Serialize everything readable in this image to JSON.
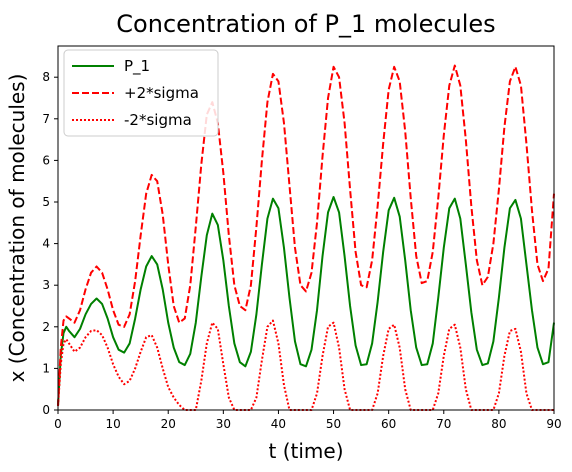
{
  "chart_data": {
    "type": "line",
    "title": "Concentration of P_1 molecules",
    "xlabel": "t (time)",
    "ylabel": "x (Concentration of molecules)",
    "xlim": [
      0,
      90
    ],
    "ylim": [
      0,
      8.75
    ],
    "xticks": [
      0,
      10,
      20,
      30,
      40,
      50,
      60,
      70,
      80,
      90
    ],
    "yticks": [
      0,
      1,
      2,
      3,
      4,
      5,
      6,
      7,
      8
    ],
    "grid": false,
    "legend_position": "top-left",
    "series": [
      {
        "name": "P_1",
        "color": "#008000",
        "style": "solid",
        "x": [
          0,
          0.5,
          1,
          1.5,
          2,
          3,
          4,
          5,
          6,
          7,
          8,
          9,
          10,
          11,
          12,
          13,
          14,
          15,
          16,
          17,
          18,
          19,
          20,
          21,
          22,
          23,
          24,
          25,
          26,
          27,
          28,
          29,
          30,
          31,
          32,
          33,
          34,
          35,
          36,
          37,
          38,
          39,
          40,
          41,
          42,
          43,
          44,
          45,
          46,
          47,
          48,
          49,
          50,
          51,
          52,
          53,
          54,
          55,
          56,
          57,
          58,
          59,
          60,
          61,
          62,
          63,
          64,
          65,
          66,
          67,
          68,
          69,
          70,
          71,
          72,
          73,
          74,
          75,
          76,
          77,
          78,
          79,
          80,
          81,
          82,
          83,
          84,
          85,
          86,
          87,
          88,
          89,
          90
        ],
        "y": [
          0.1,
          1.3,
          1.85,
          2.0,
          1.9,
          1.75,
          1.95,
          2.3,
          2.55,
          2.68,
          2.55,
          2.2,
          1.75,
          1.45,
          1.38,
          1.6,
          2.2,
          2.9,
          3.45,
          3.7,
          3.5,
          2.9,
          2.1,
          1.5,
          1.15,
          1.08,
          1.35,
          2.1,
          3.2,
          4.2,
          4.72,
          4.45,
          3.6,
          2.5,
          1.6,
          1.15,
          1.05,
          1.4,
          2.3,
          3.5,
          4.6,
          5.08,
          4.85,
          3.9,
          2.7,
          1.65,
          1.1,
          1.05,
          1.45,
          2.4,
          3.7,
          4.75,
          5.12,
          4.75,
          3.7,
          2.5,
          1.55,
          1.08,
          1.1,
          1.6,
          2.6,
          3.8,
          4.8,
          5.1,
          4.65,
          3.6,
          2.4,
          1.5,
          1.08,
          1.1,
          1.6,
          2.7,
          3.9,
          4.85,
          5.08,
          4.6,
          3.5,
          2.35,
          1.45,
          1.08,
          1.12,
          1.65,
          2.7,
          3.9,
          4.85,
          5.05,
          4.6,
          3.5,
          2.4,
          1.5,
          1.1,
          1.15,
          2.1
        ]
      },
      {
        "name": "+2*sigma",
        "color": "#ff0000",
        "style": "dashed",
        "x": [
          0,
          0.5,
          1,
          1.5,
          2,
          3,
          4,
          5,
          6,
          7,
          8,
          9,
          10,
          11,
          12,
          13,
          14,
          15,
          16,
          17,
          18,
          19,
          20,
          21,
          22,
          23,
          24,
          25,
          26,
          27,
          28,
          29,
          30,
          31,
          32,
          33,
          34,
          35,
          36,
          37,
          38,
          39,
          40,
          41,
          42,
          43,
          44,
          45,
          46,
          47,
          48,
          49,
          50,
          51,
          52,
          53,
          54,
          55,
          56,
          57,
          58,
          59,
          60,
          61,
          62,
          63,
          64,
          65,
          66,
          67,
          68,
          69,
          70,
          71,
          72,
          73,
          74,
          75,
          76,
          77,
          78,
          79,
          80,
          81,
          82,
          83,
          84,
          85,
          86,
          87,
          88,
          89,
          90
        ],
        "y": [
          0.1,
          1.5,
          2.15,
          2.25,
          2.2,
          2.1,
          2.4,
          2.9,
          3.3,
          3.45,
          3.3,
          2.9,
          2.4,
          2.05,
          2.0,
          2.3,
          3.1,
          4.2,
          5.2,
          5.65,
          5.5,
          4.7,
          3.5,
          2.5,
          2.1,
          2.2,
          3.0,
          4.4,
          5.9,
          7.1,
          7.4,
          6.9,
          5.7,
          4.2,
          3.0,
          2.5,
          2.4,
          3.0,
          4.4,
          6.0,
          7.4,
          8.08,
          7.9,
          6.9,
          5.4,
          3.9,
          3.0,
          2.85,
          3.3,
          4.5,
          6.1,
          7.5,
          8.25,
          8.0,
          6.9,
          5.3,
          3.8,
          3.0,
          2.95,
          3.6,
          4.9,
          6.4,
          7.7,
          8.25,
          7.9,
          6.7,
          5.1,
          3.7,
          3.05,
          3.1,
          3.8,
          5.1,
          6.6,
          7.8,
          8.28,
          7.8,
          6.5,
          4.9,
          3.6,
          3.0,
          3.2,
          4.0,
          5.3,
          6.8,
          7.9,
          8.25,
          7.8,
          6.4,
          4.8,
          3.5,
          3.1,
          3.4,
          5.2
        ]
      },
      {
        "name": "-2*sigma",
        "color": "#ff0000",
        "style": "dotted",
        "x": [
          0,
          0.5,
          1,
          1.5,
          2,
          3,
          4,
          5,
          6,
          7,
          8,
          9,
          10,
          11,
          12,
          13,
          14,
          15,
          16,
          17,
          18,
          19,
          20,
          21,
          22,
          23,
          24,
          25,
          26,
          27,
          28,
          29,
          30,
          31,
          32,
          33,
          34,
          35,
          36,
          37,
          38,
          39,
          40,
          41,
          42,
          43,
          44,
          45,
          46,
          47,
          48,
          49,
          50,
          51,
          52,
          53,
          54,
          55,
          56,
          57,
          58,
          59,
          60,
          61,
          62,
          63,
          64,
          65,
          66,
          67,
          68,
          69,
          70,
          71,
          72,
          73,
          74,
          75,
          76,
          77,
          78,
          79,
          80,
          81,
          82,
          83,
          84,
          85,
          86,
          87,
          88,
          89,
          90
        ],
        "y": [
          0.1,
          1.1,
          1.6,
          1.7,
          1.6,
          1.4,
          1.5,
          1.75,
          1.9,
          1.92,
          1.8,
          1.5,
          1.1,
          0.8,
          0.62,
          0.7,
          1.0,
          1.4,
          1.75,
          1.8,
          1.5,
          1.0,
          0.55,
          0.3,
          0.12,
          0.0,
          0.0,
          0.0,
          0.7,
          1.6,
          2.1,
          1.95,
          1.1,
          0.3,
          0.0,
          0.0,
          0.0,
          0.0,
          0.3,
          1.2,
          2.0,
          2.15,
          1.6,
          0.6,
          0.0,
          0.0,
          0.0,
          0.0,
          0.0,
          0.4,
          1.3,
          2.0,
          2.1,
          1.5,
          0.5,
          0.0,
          0.0,
          0.0,
          0.0,
          0.0,
          0.4,
          1.3,
          1.95,
          2.05,
          1.5,
          0.5,
          0.0,
          0.0,
          0.0,
          0.0,
          0.0,
          0.4,
          1.3,
          1.95,
          2.05,
          1.5,
          0.5,
          0.0,
          0.0,
          0.0,
          0.0,
          0.0,
          0.4,
          1.3,
          1.9,
          1.95,
          1.4,
          0.4,
          0.0,
          0.0,
          0.0,
          0.0,
          0.0
        ]
      }
    ]
  }
}
